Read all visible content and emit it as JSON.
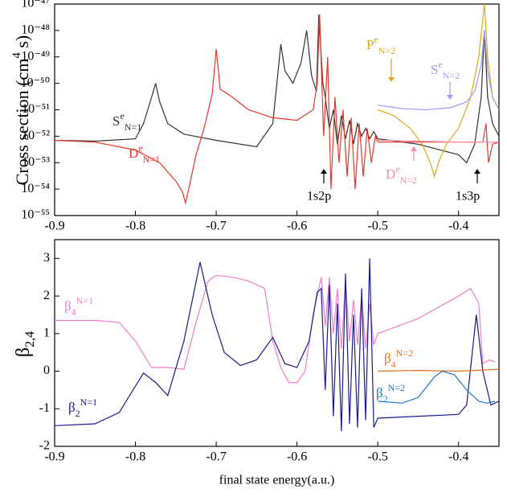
{
  "chart_data": [
    {
      "type": "line",
      "log_y": true,
      "ylabel": [
        {
          "text": "Cross section (cm"
        },
        {
          "text": "4",
          "pos": "sup"
        },
        {
          "text": " s)"
        }
      ],
      "xlim": [
        -0.9,
        -0.35
      ],
      "xticks": [
        -0.9,
        -0.8,
        -0.7,
        -0.6,
        -0.5,
        -0.4
      ],
      "ylim": [
        1e-55,
        1e-47
      ],
      "yticks": [
        {
          "value": 1e-55,
          "label": "10⁻⁵⁵"
        },
        {
          "value": 1e-54,
          "label": "10⁻⁵⁴"
        },
        {
          "value": 1e-53,
          "label": "10⁻⁵³"
        },
        {
          "value": 1e-52,
          "label": "10⁻⁵²"
        },
        {
          "value": 1e-51,
          "label": "10⁻⁵¹"
        },
        {
          "value": 1e-50,
          "label": "10⁻⁵⁰"
        },
        {
          "value": 1e-49,
          "label": "10⁻⁴⁹"
        },
        {
          "value": 1e-48,
          "label": "10⁻⁴⁸"
        },
        {
          "value": 1e-47,
          "label": "10⁻⁴⁷"
        }
      ],
      "series": [
        {
          "label": [
            {
              "text": "S"
            },
            {
              "text": "e",
              "pos": "sup"
            },
            {
              "text": "N=1",
              "pos": "sub"
            }
          ],
          "color": "#333333",
          "x": [
            -0.9,
            -0.85,
            -0.8,
            -0.79,
            -0.78,
            -0.775,
            -0.77,
            -0.76,
            -0.74,
            -0.7,
            -0.65,
            -0.63,
            -0.62,
            -0.615,
            -0.605,
            -0.595,
            -0.588,
            -0.582,
            -0.576,
            -0.573,
            -0.568,
            -0.565,
            -0.56,
            -0.555,
            -0.55,
            -0.545,
            -0.54,
            -0.535,
            -0.53,
            -0.525,
            -0.52,
            -0.515,
            -0.51,
            -0.505,
            -0.5,
            -0.45,
            -0.4,
            -0.39,
            -0.38,
            -0.372,
            -0.368,
            -0.364,
            -0.358,
            -0.35
          ],
          "values": [
            7e-53,
            6.5e-53,
            8e-53,
            3e-52,
            3e-51,
            1e-50,
            2e-51,
            3e-52,
            1.2e-52,
            7e-53,
            4e-53,
            3e-52,
            3e-49,
            3e-50,
            1e-50,
            6e-50,
            1e-48,
            2e-50,
            5e-51,
            4e-48,
            1e-50,
            3e-51,
            2e-52,
            1e-51,
            5e-53,
            6e-52,
            8e-53,
            4e-52,
            5e-53,
            3e-52,
            1e-52,
            2e-52,
            8e-53,
            1.5e-52,
            8e-53,
            5e-53,
            2e-53,
            1e-53,
            5e-53,
            3e-51,
            1e-48,
            3e-51,
            3e-52,
            1e-52
          ]
        },
        {
          "label": [
            {
              "text": "D"
            },
            {
              "text": "e",
              "pos": "sup"
            },
            {
              "text": "N=1",
              "pos": "sub"
            }
          ],
          "color": "#e8352a",
          "x": [
            -0.9,
            -0.85,
            -0.8,
            -0.77,
            -0.75,
            -0.742,
            -0.738,
            -0.734,
            -0.725,
            -0.715,
            -0.705,
            -0.7,
            -0.695,
            -0.68,
            -0.66,
            -0.63,
            -0.6,
            -0.58,
            -0.575,
            -0.572,
            -0.567,
            -0.562,
            -0.558,
            -0.553,
            -0.548,
            -0.543,
            -0.538,
            -0.533,
            -0.528,
            -0.523,
            -0.518,
            -0.513,
            -0.508,
            -0.503,
            -0.5,
            -0.45,
            -0.4,
            -0.37,
            -0.366,
            -0.363,
            -0.358,
            -0.35
          ],
          "values": [
            7e-53,
            6e-53,
            3e-53,
            1e-53,
            2e-54,
            8e-55,
            3e-55,
            1e-54,
            2e-53,
            2e-52,
            4e-51,
            2e-49,
            6e-51,
            3e-51,
            1e-51,
            5e-52,
            4e-52,
            1e-51,
            1e-50,
            4e-48,
            1e-52,
            1e-49,
            1e-54,
            3e-51,
            1e-53,
            1e-51,
            3e-54,
            5e-52,
            1e-54,
            3e-52,
            3e-54,
            2e-52,
            1e-53,
            1e-52,
            6e-53,
            6e-53,
            6e-53,
            6e-53,
            3e-52,
            1e-53,
            5e-53,
            6e-53
          ]
        },
        {
          "label": [
            {
              "text": "P"
            },
            {
              "text": "e",
              "pos": "sup"
            },
            {
              "text": "N=2",
              "pos": "sub"
            }
          ],
          "color": "#e0a81e",
          "x": [
            -0.5,
            -0.48,
            -0.46,
            -0.445,
            -0.435,
            -0.43,
            -0.425,
            -0.415,
            -0.4,
            -0.385,
            -0.375,
            -0.368,
            -0.364,
            -0.358,
            -0.35
          ],
          "values": [
            1e-51,
            6e-52,
            2e-52,
            5e-53,
            1e-53,
            3e-54,
            1e-53,
            5e-53,
            2e-52,
            3e-51,
            1e-49,
            1e-47,
            1e-49,
            3e-51,
            1e-51
          ]
        },
        {
          "label": [
            {
              "text": "S"
            },
            {
              "text": "e",
              "pos": "sup"
            },
            {
              "text": "N=2",
              "pos": "sub"
            }
          ],
          "color": "#9c9cf0",
          "x": [
            -0.5,
            -0.47,
            -0.44,
            -0.41,
            -0.39,
            -0.38,
            -0.372,
            -0.368,
            -0.364,
            -0.358,
            -0.35
          ],
          "values": [
            1.5e-51,
            1.1e-51,
            1e-51,
            1.2e-51,
            2e-51,
            5e-51,
            5e-50,
            1e-48,
            3e-50,
            3e-51,
            1e-51
          ]
        },
        {
          "label": [
            {
              "text": "D"
            },
            {
              "text": "e",
              "pos": "sup"
            },
            {
              "text": "N=2",
              "pos": "sub"
            }
          ],
          "color": "#f08fa8",
          "x": [
            -0.5,
            -0.45,
            -0.4,
            -0.37,
            -0.35
          ],
          "values": [
            7e-53,
            6.5e-53,
            6e-53,
            6e-53,
            6e-53
          ]
        }
      ],
      "annotations": [
        "1s2p",
        "1s3p"
      ]
    },
    {
      "type": "line",
      "log_y": false,
      "ylabel": [
        {
          "text": "β"
        },
        {
          "text": "2,4",
          "pos": "sub"
        }
      ],
      "xlabel": "final state energy(a.u.)",
      "xlim": [
        -0.9,
        -0.35
      ],
      "xticks": [
        -0.9,
        -0.8,
        -0.7,
        -0.6,
        -0.5,
        -0.4
      ],
      "ylim": [
        -2,
        3.5
      ],
      "yticks": [
        -2,
        -1,
        0,
        1,
        2,
        3
      ],
      "series": [
        {
          "label": [
            {
              "text": "β"
            },
            {
              "text": "4",
              "pos": "sub"
            },
            {
              "text": "N=1",
              "pos": "sup"
            }
          ],
          "color": "#f07ec8",
          "x": [
            -0.9,
            -0.85,
            -0.82,
            -0.8,
            -0.78,
            -0.76,
            -0.74,
            -0.725,
            -0.71,
            -0.7,
            -0.68,
            -0.66,
            -0.64,
            -0.63,
            -0.62,
            -0.61,
            -0.6,
            -0.59,
            -0.58,
            -0.57,
            -0.565,
            -0.56,
            -0.555,
            -0.55,
            -0.545,
            -0.54,
            -0.535,
            -0.53,
            -0.525,
            -0.52,
            -0.515,
            -0.51,
            -0.505,
            -0.5,
            -0.45,
            -0.4,
            -0.385,
            -0.375,
            -0.37,
            -0.362,
            -0.355
          ],
          "values": [
            1.35,
            1.35,
            1.3,
            0.8,
            0.1,
            0.1,
            0.05,
            1.3,
            2.4,
            2.55,
            2.5,
            2.4,
            2.2,
            0.8,
            0.1,
            -0.3,
            -0.3,
            0.0,
            1.5,
            2.5,
            1.2,
            2.5,
            1.0,
            2.2,
            0.6,
            2.4,
            0.8,
            1.9,
            0.7,
            2.0,
            0.6,
            1.8,
            0.7,
            1.0,
            1.4,
            2.0,
            2.2,
            1.8,
            0.2,
            0.3,
            0.25
          ]
        },
        {
          "label": [
            {
              "text": "β"
            },
            {
              "text": "2",
              "pos": "sub"
            },
            {
              "text": "N=1",
              "pos": "sup"
            }
          ],
          "color": "#1a1a8c",
          "x": [
            -0.9,
            -0.85,
            -0.82,
            -0.8,
            -0.79,
            -0.775,
            -0.76,
            -0.74,
            -0.72,
            -0.705,
            -0.69,
            -0.67,
            -0.65,
            -0.63,
            -0.615,
            -0.6,
            -0.585,
            -0.575,
            -0.57,
            -0.565,
            -0.56,
            -0.555,
            -0.55,
            -0.545,
            -0.54,
            -0.535,
            -0.53,
            -0.525,
            -0.52,
            -0.515,
            -0.51,
            -0.505,
            -0.5,
            -0.45,
            -0.4,
            -0.39,
            -0.378,
            -0.37,
            -0.36,
            -0.35
          ],
          "values": [
            -1.45,
            -1.4,
            -1.1,
            -0.4,
            -0.05,
            -0.3,
            -0.65,
            0.8,
            2.9,
            1.5,
            0.5,
            0.15,
            0.3,
            0.9,
            0.2,
            0.1,
            0.8,
            2.1,
            2.2,
            -0.5,
            2.3,
            -1.2,
            1.8,
            -1.6,
            2.6,
            -1.4,
            1.5,
            -1.5,
            2.2,
            -1.3,
            3.0,
            -1.5,
            -1.25,
            -1.2,
            -1.15,
            -0.9,
            1.5,
            0.0,
            -0.9,
            -0.8
          ]
        },
        {
          "label": [
            {
              "text": "β"
            },
            {
              "text": "4",
              "pos": "sub"
            },
            {
              "text": "N=2",
              "pos": "sup"
            }
          ],
          "color": "#e07020",
          "x": [
            -0.5,
            -0.45,
            -0.4,
            -0.37,
            -0.35
          ],
          "values": [
            0.0,
            0.02,
            0.0,
            0.03,
            0.05
          ]
        },
        {
          "label": [
            {
              "text": "β"
            },
            {
              "text": "2",
              "pos": "sub"
            },
            {
              "text": "N=2",
              "pos": "sup"
            }
          ],
          "color": "#1e78c8",
          "x": [
            -0.5,
            -0.47,
            -0.45,
            -0.43,
            -0.42,
            -0.405,
            -0.39,
            -0.375,
            -0.365,
            -0.355
          ],
          "values": [
            -0.8,
            -0.85,
            -0.7,
            -0.15,
            0.0,
            -0.1,
            -0.5,
            -0.8,
            -0.85,
            -0.8
          ]
        }
      ]
    }
  ]
}
